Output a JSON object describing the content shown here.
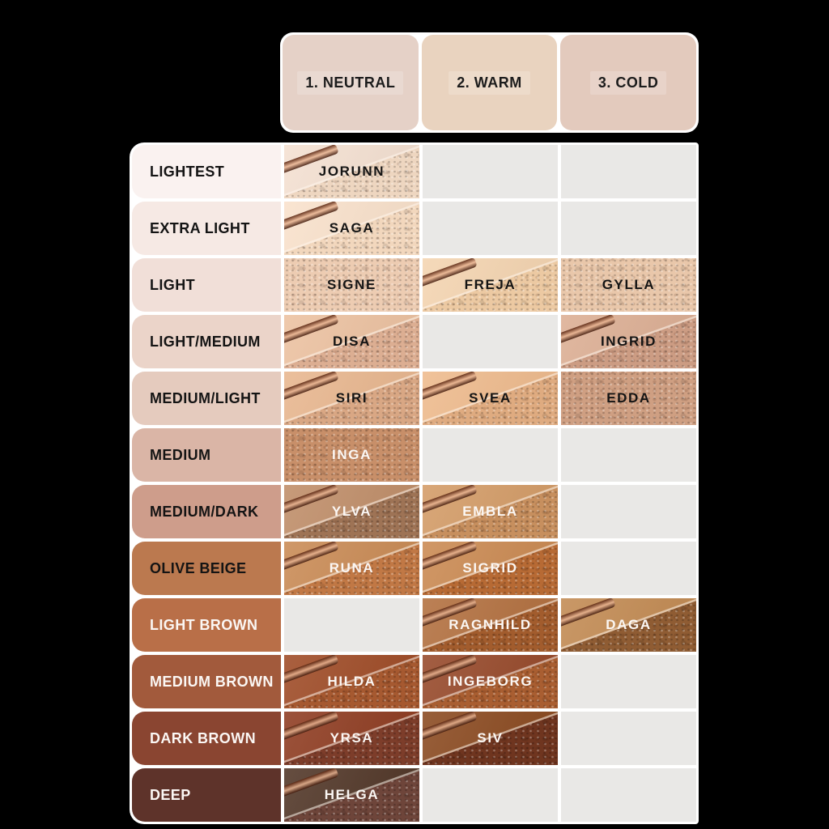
{
  "page": {
    "background": "#000000"
  },
  "header": {
    "columns": [
      {
        "label": "1. NEUTRAL",
        "bg": "#e5d1c7"
      },
      {
        "label": "2. WARM",
        "bg": "#e9d3bf"
      },
      {
        "label": "3. COLD",
        "bg": "#e3cabd"
      }
    ]
  },
  "grid": {
    "empty_cell_color": "#e9e8e6",
    "rows": [
      {
        "label": "LIGHTEST",
        "label_bg": "#faf2f0",
        "label_text": "#141414",
        "cells": [
          {
            "name": "JORUNN",
            "smooth": "#f4e0d1",
            "powder": "#eed6c0",
            "text": "#141414",
            "streak": true,
            "full_powder": false
          },
          null,
          null
        ]
      },
      {
        "label": "EXTRA LIGHT",
        "label_bg": "#f6e9e4",
        "label_text": "#141414",
        "cells": [
          {
            "name": "SAGA",
            "smooth": "#f9e1cb",
            "powder": "#f2d7bd",
            "text": "#141414",
            "streak": true,
            "full_powder": false
          },
          null,
          null
        ]
      },
      {
        "label": "LIGHT",
        "label_bg": "#f1dfd8",
        "label_text": "#141414",
        "cells": [
          {
            "name": "SIGNE",
            "smooth": "#edccb2",
            "powder": "#edccb2",
            "text": "#141414",
            "streak": false,
            "full_powder": true
          },
          {
            "name": "FREJA",
            "smooth": "#f4d4b0",
            "powder": "#ecc9a2",
            "text": "#141414",
            "streak": true,
            "full_powder": false
          },
          {
            "name": "GYLLA",
            "smooth": "#e9c7aa",
            "powder": "#e9c7aa",
            "text": "#141414",
            "streak": false,
            "full_powder": true
          }
        ]
      },
      {
        "label": "LIGHT/MEDIUM",
        "label_bg": "#ebd4c9",
        "label_text": "#141414",
        "cells": [
          {
            "name": "DISA",
            "smooth": "#ecc1a0",
            "powder": "#dcae92",
            "text": "#141414",
            "streak": true,
            "full_powder": false
          },
          null,
          {
            "name": "INGRID",
            "smooth": "#dcae93",
            "powder": "#cc9c83",
            "text": "#141414",
            "streak": true,
            "full_powder": false
          }
        ]
      },
      {
        "label": "MEDIUM/LIGHT",
        "label_bg": "#e5cbbe",
        "label_text": "#141414",
        "cells": [
          {
            "name": "SIRI",
            "smooth": "#e8b68e",
            "powder": "#d9a784",
            "text": "#141414",
            "streak": true,
            "full_powder": false
          },
          {
            "name": "SVEA",
            "smooth": "#eeba8c",
            "powder": "#dfab80",
            "text": "#141414",
            "streak": true,
            "full_powder": false
          },
          {
            "name": "EDDA",
            "smooth": "#cf9f82",
            "powder": "#cf9f82",
            "text": "#141414",
            "streak": false,
            "full_powder": true
          }
        ]
      },
      {
        "label": "MEDIUM",
        "label_bg": "#dab5a6",
        "label_text": "#141414",
        "cells": [
          {
            "name": "INGA",
            "smooth": "#c88f69",
            "powder": "#c88f69",
            "text": "#fbf7f4",
            "streak": false,
            "full_powder": true
          },
          null,
          null
        ]
      },
      {
        "label": "MEDIUM/DARK",
        "label_bg": "#ce9d8b",
        "label_text": "#141414",
        "cells": [
          {
            "name": "YLVA",
            "smooth": "#bf8d68",
            "powder": "#9e7355",
            "text": "#fbf7f4",
            "streak": true,
            "full_powder": false
          },
          {
            "name": "EMBLA",
            "smooth": "#d39b66",
            "powder": "#c78f5e",
            "text": "#fbf7f4",
            "streak": true,
            "full_powder": false
          },
          null
        ]
      },
      {
        "label": "OLIVE BEIGE",
        "label_bg": "#bb794f",
        "label_text": "#141414",
        "cells": [
          {
            "name": "RUNA",
            "smooth": "#c98a54",
            "powder": "#c17845",
            "text": "#fbf7f4",
            "streak": true,
            "full_powder": false
          },
          {
            "name": "SIGRID",
            "smooth": "#ca8951",
            "powder": "#b76a34",
            "text": "#fbf7f4",
            "streak": true,
            "full_powder": false
          },
          null
        ]
      },
      {
        "label": "LIGHT BROWN",
        "label_bg": "#b96f48",
        "label_text": "#fbf7f4",
        "cells": [
          null,
          {
            "name": "RAGNHILD",
            "smooth": "#b26f3e",
            "powder": "#a25c2d",
            "text": "#fbf7f4",
            "streak": true,
            "full_powder": false
          },
          {
            "name": "DAGA",
            "smooth": "#c28a52",
            "powder": "#8f5c33",
            "text": "#fbf7f4",
            "streak": true,
            "full_powder": false
          }
        ]
      },
      {
        "label": "MEDIUM BROWN",
        "label_bg": "#a25a3c",
        "label_text": "#fbf7f4",
        "cells": [
          {
            "name": "HILDA",
            "smooth": "#9e4a25",
            "powder": "#a65930",
            "text": "#fbf7f4",
            "streak": true,
            "full_powder": false
          },
          {
            "name": "INGEBORG",
            "smooth": "#964829",
            "powder": "#a95e31",
            "text": "#fbf7f4",
            "streak": true,
            "full_powder": false
          },
          null
        ]
      },
      {
        "label": "DARK BROWN",
        "label_bg": "#8a4531",
        "label_text": "#fbf7f4",
        "cells": [
          {
            "name": "YRSA",
            "smooth": "#8e3b20",
            "powder": "#7d3d2a",
            "text": "#fbf7f4",
            "streak": true,
            "full_powder": false
          },
          {
            "name": "SIV",
            "smooth": "#8a491f",
            "powder": "#6f351f",
            "text": "#fbf7f4",
            "streak": true,
            "full_powder": false
          },
          null
        ]
      },
      {
        "label": "DEEP",
        "label_bg": "#5e332a",
        "label_text": "#fbf7f4",
        "cells": [
          {
            "name": "HELGA",
            "smooth": "#503526",
            "powder": "#6e453a",
            "text": "#fbf7f4",
            "streak": true,
            "full_powder": false
          },
          null,
          null
        ]
      }
    ]
  },
  "chart_data": {
    "type": "table",
    "title": "Foundation shade chart by depth and undertone",
    "columns": [
      "1. NEUTRAL",
      "2. WARM",
      "3. COLD"
    ],
    "rows": [
      "LIGHTEST",
      "EXTRA LIGHT",
      "LIGHT",
      "LIGHT/MEDIUM",
      "MEDIUM/LIGHT",
      "MEDIUM",
      "MEDIUM/DARK",
      "OLIVE BEIGE",
      "LIGHT BROWN",
      "MEDIUM BROWN",
      "DARK BROWN",
      "DEEP"
    ],
    "cells": [
      [
        "JORUNN",
        null,
        null
      ],
      [
        "SAGA",
        null,
        null
      ],
      [
        "SIGNE",
        "FREJA",
        "GYLLA"
      ],
      [
        "DISA",
        null,
        "INGRID"
      ],
      [
        "SIRI",
        "SVEA",
        "EDDA"
      ],
      [
        "INGA",
        null,
        null
      ],
      [
        "YLVA",
        "EMBLA",
        null
      ],
      [
        "RUNA",
        "SIGRID",
        null
      ],
      [
        null,
        "RAGNHILD",
        "DAGA"
      ],
      [
        "HILDA",
        "INGEBORG",
        null
      ],
      [
        "YRSA",
        "SIV",
        null
      ],
      [
        "HELGA",
        null,
        null
      ]
    ]
  }
}
